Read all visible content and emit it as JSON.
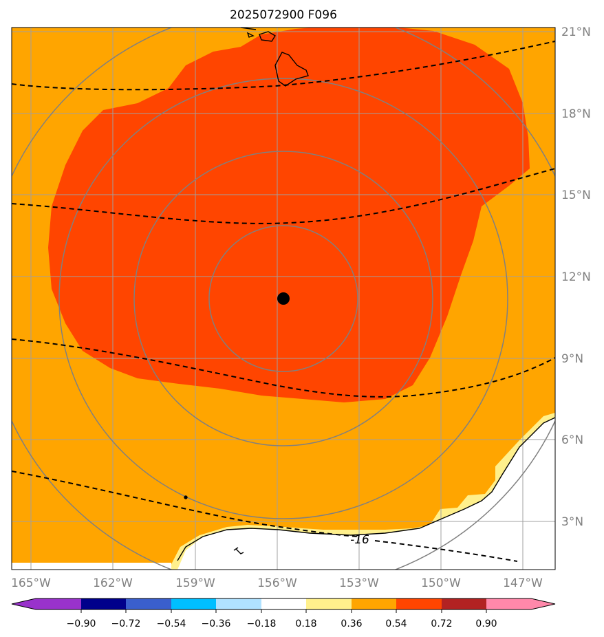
{
  "title": "2025072900 F096",
  "lon_labels": [
    "165°W",
    "162°W",
    "159°W",
    "156°W",
    "153°W",
    "150°W",
    "147°W"
  ],
  "lat_labels": [
    "21°N",
    "18°N",
    "15°N",
    "12°N",
    "9°N",
    "6°N",
    "3°N"
  ],
  "colorbar": {
    "ticks": [
      "−0.90",
      "−0.72",
      "−0.54",
      "−0.36",
      "−0.18",
      "0.18",
      "0.36",
      "0.54",
      "0.72",
      "0.90"
    ],
    "colors": [
      "#9932cc",
      "#00008b",
      "#3a5fcd",
      "#00bfff",
      "#b0e2ff",
      "#ffffff",
      "#fff08c",
      "#ffa500",
      "#ff4500",
      "#b22222",
      "#ff88aa"
    ]
  },
  "contour_label": "-16",
  "storm_center": {
    "lon": -155.8,
    "lat": 11.2
  },
  "colors": {
    "field_low": "#ffa500",
    "field_high": "#ff4500",
    "field_edge": "#fff08c",
    "grid": "#a0a0a0",
    "range_rings": "#808080"
  },
  "chart_data": {
    "type": "heatmap",
    "title": "2025072900 F096",
    "x_range_deg_lon": [
      -165,
      -145
    ],
    "y_range_deg_lat": [
      1.3,
      21.3
    ],
    "levels": [
      -0.9,
      -0.72,
      -0.54,
      -0.36,
      -0.18,
      0.18,
      0.36,
      0.54,
      0.72,
      0.9
    ],
    "grid": true
  }
}
